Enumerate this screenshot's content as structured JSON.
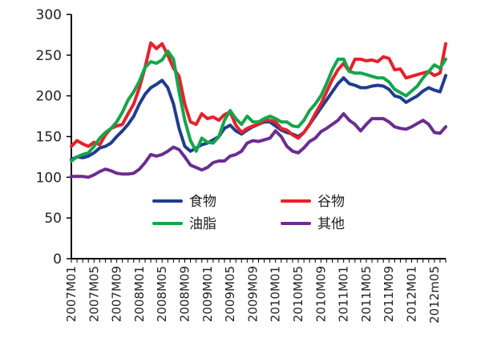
{
  "chart_data": {
    "type": "line",
    "title": "",
    "xlabel": "",
    "ylabel": "",
    "ylim": [
      0,
      300
    ],
    "yticks": [
      0,
      50,
      100,
      150,
      200,
      250,
      300
    ],
    "grid": false,
    "legend_position": "center",
    "x": [
      "2007M01",
      "2007M02",
      "2007M03",
      "2007M04",
      "2007M05",
      "2007M06",
      "2007M07",
      "2007M08",
      "2007M09",
      "2007M10",
      "2007M11",
      "2007M12",
      "2008M01",
      "2008M02",
      "2008M03",
      "2008M04",
      "2008M05",
      "2008M06",
      "2008M07",
      "2008M08",
      "2008M09",
      "2008M10",
      "2008M11",
      "2008M12",
      "2009M01",
      "2009M02",
      "2009M03",
      "2009M04",
      "2009M05",
      "2009M06",
      "2009M07",
      "2009M08",
      "2009M09",
      "2009M10",
      "2009M11",
      "2009M12",
      "2010M01",
      "2010M02",
      "2010M03",
      "2010M04",
      "2010M05",
      "2010M06",
      "2010M07",
      "2010M08",
      "2010M09",
      "2010M10",
      "2010M11",
      "2010M12",
      "2011M01",
      "2011M02",
      "2011M03",
      "2011M04",
      "2011M05",
      "2011M06",
      "2011M07",
      "2011M08",
      "2011M09",
      "2011M10",
      "2011M11",
      "2011M12",
      "2012M01",
      "2012M02",
      "2012M03",
      "2012M04",
      "2012M05",
      "2012M06",
      "2012M07"
    ],
    "x_tick_labels": [
      "2007M01",
      "2007M05",
      "2007M09",
      "2008M01",
      "2008M05",
      "2008M09",
      "2009M01",
      "2009M05",
      "2009M09",
      "2010M01",
      "2010M05",
      "2010M09",
      "2011M01",
      "2011M05",
      "2011M09",
      "2012M01",
      "2012m05"
    ],
    "series": [
      {
        "name": "食物",
        "color": "#1f3d8f",
        "values": [
          122,
          125,
          124,
          126,
          130,
          136,
          138,
          142,
          150,
          157,
          165,
          175,
          190,
          202,
          210,
          214,
          219,
          210,
          190,
          160,
          138,
          132,
          136,
          140,
          142,
          146,
          150,
          160,
          164,
          157,
          153,
          158,
          162,
          165,
          168,
          168,
          163,
          158,
          155,
          153,
          150,
          155,
          165,
          175,
          185,
          195,
          205,
          215,
          222,
          215,
          213,
          210,
          210,
          212,
          213,
          212,
          208,
          200,
          198,
          192,
          196,
          200,
          206,
          210,
          207,
          205,
          225
        ]
      },
      {
        "name": "谷物",
        "color": "#e8202a",
        "values": [
          138,
          145,
          141,
          138,
          143,
          140,
          152,
          160,
          163,
          165,
          178,
          190,
          210,
          235,
          265,
          258,
          264,
          250,
          234,
          224,
          190,
          168,
          165,
          178,
          172,
          174,
          170,
          177,
          180,
          164,
          155,
          160,
          163,
          165,
          170,
          170,
          168,
          160,
          158,
          152,
          148,
          155,
          165,
          178,
          190,
          205,
          220,
          232,
          240,
          230,
          245,
          245,
          243,
          244,
          242,
          248,
          246,
          232,
          233,
          222,
          224,
          226,
          228,
          230,
          225,
          228,
          264
        ]
      },
      {
        "name": "油脂",
        "color": "#13a64a",
        "values": [
          120,
          125,
          128,
          130,
          138,
          148,
          155,
          160,
          168,
          180,
          195,
          205,
          218,
          235,
          242,
          240,
          244,
          255,
          245,
          205,
          170,
          145,
          132,
          148,
          143,
          142,
          150,
          170,
          182,
          172,
          165,
          175,
          168,
          168,
          172,
          175,
          172,
          168,
          168,
          163,
          162,
          170,
          182,
          190,
          200,
          215,
          232,
          245,
          245,
          230,
          228,
          228,
          226,
          224,
          222,
          222,
          217,
          208,
          204,
          200,
          206,
          212,
          222,
          230,
          238,
          234,
          245
        ]
      },
      {
        "name": "其他",
        "color": "#6b2d8f",
        "values": [
          101,
          101,
          101,
          100,
          103,
          107,
          110,
          108,
          105,
          104,
          104,
          105,
          110,
          118,
          128,
          126,
          128,
          132,
          137,
          134,
          125,
          115,
          112,
          109,
          112,
          118,
          120,
          120,
          126,
          128,
          132,
          142,
          145,
          144,
          146,
          148,
          157,
          150,
          138,
          132,
          130,
          136,
          144,
          148,
          156,
          160,
          165,
          170,
          178,
          170,
          165,
          157,
          165,
          172,
          172,
          172,
          168,
          162,
          160,
          159,
          162,
          166,
          170,
          165,
          155,
          154,
          162
        ]
      }
    ]
  }
}
